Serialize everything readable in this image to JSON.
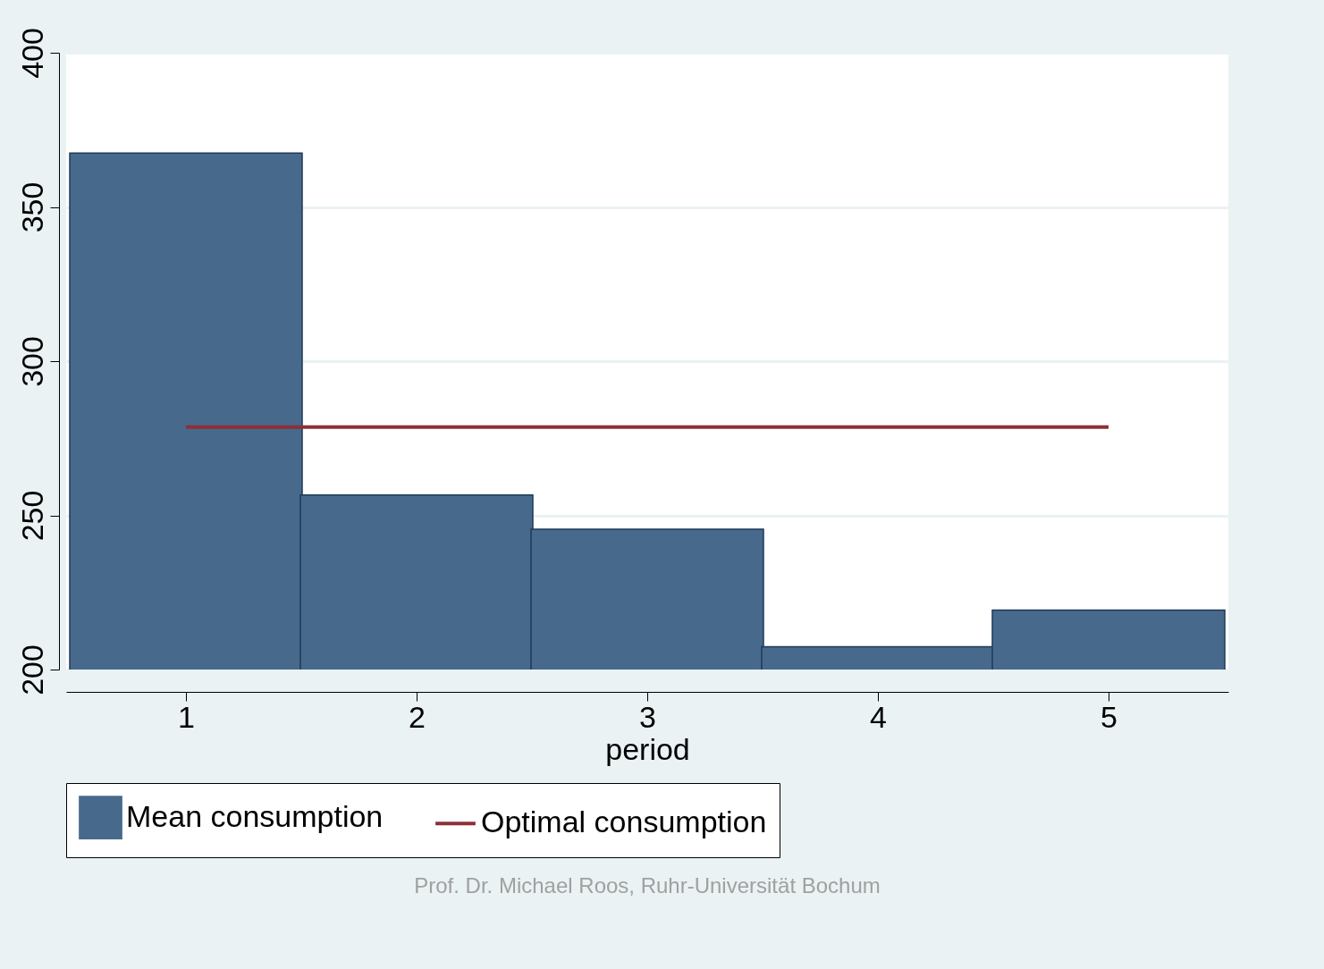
{
  "chart_data": {
    "type": "bar",
    "xlabel": "period",
    "x": [
      1,
      2,
      3,
      4,
      5
    ],
    "series": [
      {
        "name": "Mean consumption",
        "color": "#476a8c",
        "values": [
          367.5,
          256.6,
          245.5,
          207.4,
          219.3
        ]
      },
      {
        "name": "Optimal consumption",
        "type": "line",
        "color": "#8e2f39",
        "x": [
          1,
          5
        ],
        "values": [
          278.6,
          278.6
        ]
      }
    ],
    "xlim": [
      0.5,
      5.5
    ],
    "xticks": [
      1,
      2,
      3,
      4,
      5
    ],
    "ylim": [
      200,
      400
    ],
    "yticks": [
      200,
      250,
      300,
      350,
      400
    ],
    "grid": "y",
    "legend": "bottom",
    "annotations": [
      "Prof. Dr. Michael Roos, Ruhr-Universität Bochum"
    ]
  }
}
